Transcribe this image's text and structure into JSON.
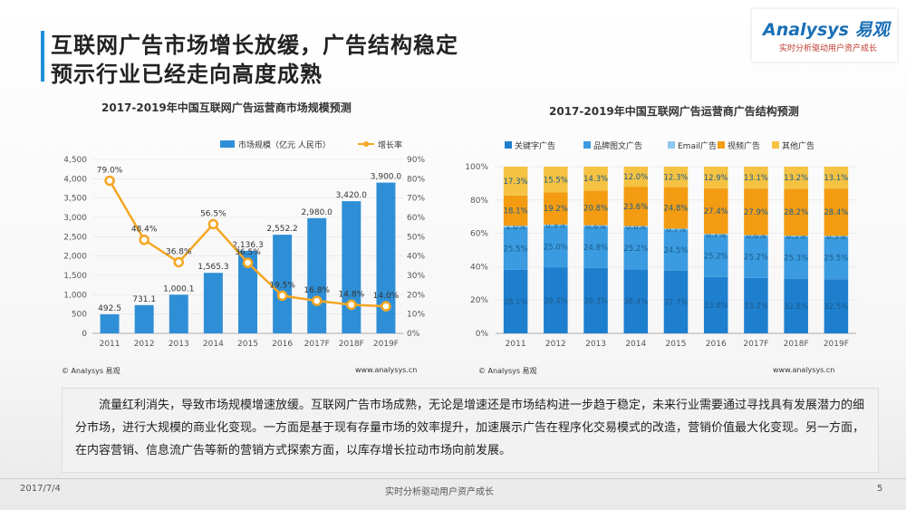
{
  "header": {
    "title_line1": "互联网广告市场增长放缓，广告结构稳定",
    "title_line2": "预示行业已经走向高度成熟"
  },
  "logo": {
    "brand": "Analysys 易观",
    "tagline": "实时分析驱动用户资产成长"
  },
  "colors": {
    "accent": "#1d8fd6",
    "bar": "#2f8fd6",
    "line": "#f5a623"
  },
  "chart_data": [
    {
      "type": "bar",
      "title": "2017-2019年中国互联网广告运营商市场规模预测",
      "categories": [
        "2011",
        "2012",
        "2013",
        "2014",
        "2015",
        "2016",
        "2017F",
        "2018F",
        "2019F"
      ],
      "series": [
        {
          "name": "市场规模（亿元 人民币）",
          "type": "bar",
          "axis": "left",
          "values": [
            492.5,
            731.1,
            1000.1,
            1565.3,
            2136.3,
            2552.2,
            2980.0,
            3420.0,
            3900.0
          ],
          "labels": [
            "492.5",
            "731.1",
            "1,000.1",
            "1,565.3",
            "2,136.3",
            "2,552.2",
            "2,980.0",
            "3,420.0",
            "3,900.0"
          ]
        },
        {
          "name": "增长率",
          "type": "line",
          "axis": "right",
          "values": [
            79.0,
            48.4,
            36.8,
            56.5,
            36.5,
            19.5,
            16.8,
            14.8,
            14.0
          ],
          "labels": [
            "79.0%",
            "48.4%",
            "36.8%",
            "56.5%",
            "36.5%",
            "19.5%",
            "16.8%",
            "14.8%",
            "14.0%"
          ]
        }
      ],
      "y_left": {
        "ylim": [
          0,
          4500
        ],
        "ticks": [
          "0",
          "500",
          "1,000",
          "1,500",
          "2,000",
          "2,500",
          "3,000",
          "3,500",
          "4,000",
          "4,500"
        ]
      },
      "y_right": {
        "ylim": [
          0,
          90
        ],
        "ticks": [
          "0%",
          "10%",
          "20%",
          "30%",
          "40%",
          "50%",
          "60%",
          "70%",
          "80%",
          "90%"
        ]
      },
      "source": "© Analysys 易观",
      "site": "www.analysys.cn"
    },
    {
      "type": "bar",
      "stacked": true,
      "title": "2017-2019年中国互联网广告运营商广告结构预测",
      "categories": [
        "2011",
        "2012",
        "2013",
        "2014",
        "2015",
        "2016",
        "2017F",
        "2018F",
        "2019F"
      ],
      "series": [
        {
          "name": "关键字广告",
          "color": "#1f7fcf",
          "values": [
            38.1,
            39.4,
            39.3,
            38.4,
            37.7,
            33.8,
            33.2,
            32.8,
            32.5
          ]
        },
        {
          "name": "品牌图文广告",
          "color": "#3a9be0",
          "values": [
            25.5,
            25.0,
            24.8,
            25.2,
            24.5,
            25.2,
            25.2,
            25.3,
            25.5
          ]
        },
        {
          "name": "Email广告",
          "color": "#8cc8f0",
          "values": [
            1.0,
            0.9,
            0.8,
            0.8,
            0.7,
            0.7,
            0.6,
            0.5,
            0.5
          ]
        },
        {
          "name": "视频广告",
          "color": "#f39c12",
          "values": [
            18.1,
            19.2,
            20.8,
            23.6,
            24.8,
            27.4,
            27.9,
            28.2,
            28.4
          ]
        },
        {
          "name": "其他广告",
          "color": "#f5c242",
          "values": [
            17.3,
            15.5,
            14.3,
            12.0,
            12.3,
            12.9,
            13.1,
            13.2,
            13.1
          ]
        }
      ],
      "ylim": [
        0,
        100
      ],
      "ticks": [
        "0%",
        "20%",
        "40%",
        "60%",
        "80%",
        "100%"
      ],
      "source": "© Analysys 易观",
      "site": "www.analysys.cn"
    }
  ],
  "body_text": "流量红利消失，导致市场规模增速放缓。互联网广告市场成熟，无论是增速还是市场结构进一步趋于稳定，未来行业需要通过寻找具有发展潜力的细分市场，进行大规模的商业化变现。一方面是基于现有存量市场的效率提升，加速展示广告在程序化交易模式的改造，营销价值最大化变现。另一方面，在内容营销、信息流广告等新的营销方式探索方面，以库存增长拉动市场向前发展。",
  "footer": {
    "date": "2017/7/4",
    "center": "实时分析驱动用户资产成长",
    "page": "5"
  }
}
